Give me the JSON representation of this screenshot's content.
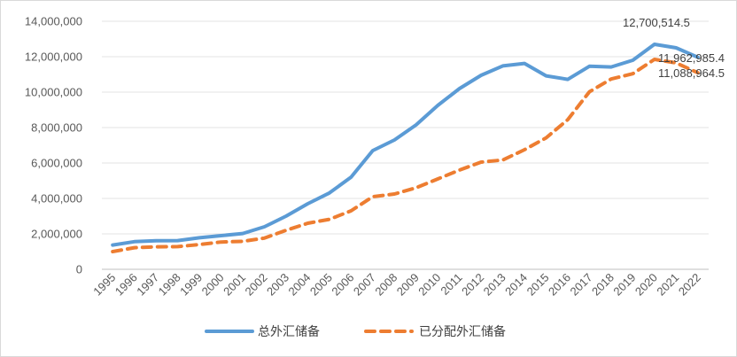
{
  "chart_data": {
    "type": "line",
    "title": "",
    "xlabel": "",
    "ylabel": "",
    "x": [
      "1995",
      "1996",
      "1997",
      "1998",
      "1999",
      "2000",
      "2001",
      "2002",
      "2003",
      "2004",
      "2005",
      "2006",
      "2007",
      "2008",
      "2009",
      "2010",
      "2011",
      "2012",
      "2013",
      "2014",
      "2015",
      "2016",
      "2017",
      "2018",
      "2019",
      "2020",
      "2021",
      "2022"
    ],
    "ylim": [
      0,
      14000000
    ],
    "yticks": [
      "0",
      "2,000,000",
      "4,000,000",
      "6,000,000",
      "8,000,000",
      "10,000,000",
      "12,000,000",
      "14,000,000"
    ],
    "grid": true,
    "legend": "bottom",
    "series": [
      {
        "name": "总外汇储备",
        "color": "#5b9bd5",
        "style": "solid",
        "values": [
          1370000,
          1560000,
          1610000,
          1620000,
          1780000,
          1900000,
          2020000,
          2400000,
          3000000,
          3700000,
          4310000,
          5200000,
          6700000,
          7300000,
          8150000,
          9250000,
          10200000,
          10950000,
          11480000,
          11620000,
          10920000,
          10720000,
          11460000,
          11420000,
          11800000,
          12700514.5,
          12500000,
          11962985.4
        ]
      },
      {
        "name": "已分配外汇储备",
        "color": "#ed7d31",
        "style": "dashed",
        "values": [
          1000000,
          1220000,
          1270000,
          1280000,
          1400000,
          1540000,
          1580000,
          1760000,
          2200000,
          2600000,
          2820000,
          3300000,
          4100000,
          4250000,
          4600000,
          5100000,
          5600000,
          6050000,
          6170000,
          6750000,
          7420000,
          8450000,
          10020000,
          10740000,
          11040000,
          11850000,
          11650000,
          11088964.5
        ]
      }
    ],
    "annotations": [
      "12,700,514.5",
      "11,962,985.4",
      "11,088,964.5"
    ]
  }
}
